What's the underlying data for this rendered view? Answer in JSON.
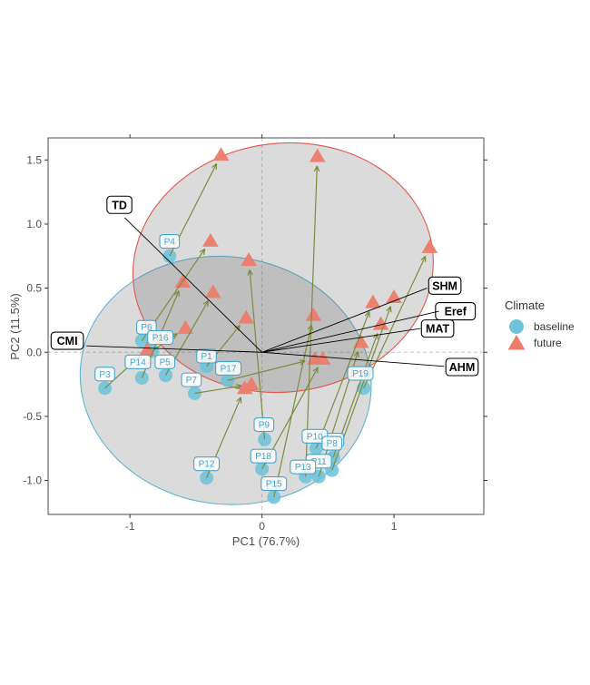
{
  "chart_data": {
    "type": "scatter",
    "title": "",
    "xlabel": "PC1 (76.7%)",
    "ylabel": "PC2 (11.5%)",
    "xlim": [
      -1.62,
      1.68
    ],
    "ylim": [
      -1.265,
      1.672
    ],
    "grid": "off",
    "reference_lines": {
      "vline_x": 0,
      "hline_y": 0
    },
    "x_ticks": [
      {
        "value": -1,
        "label": "-1"
      },
      {
        "value": 0,
        "label": "0"
      },
      {
        "value": 1,
        "label": "1"
      }
    ],
    "y_ticks": [
      {
        "value": -1.0,
        "label": "-1.0"
      },
      {
        "value": -0.5,
        "label": "-0.5"
      },
      {
        "value": 0.0,
        "label": "0.0"
      },
      {
        "value": 0.5,
        "label": "0.5"
      },
      {
        "value": 1.0,
        "label": "1.0"
      },
      {
        "value": 1.5,
        "label": "1.5"
      }
    ],
    "legend": {
      "title": "Climate",
      "position": "right",
      "entries": [
        {
          "label": "baseline",
          "marker": "circle"
        },
        {
          "label": "future",
          "marker": "triangle"
        }
      ]
    },
    "colors": {
      "baseline": "#6EC3DA",
      "future": "#EC7C6B",
      "arrow": "#7D8B3E",
      "baseline_ellipse_stroke": "#5FB4D1",
      "future_ellipse_stroke": "#E0584A",
      "ellipse_fill": "rgba(106,106,106,0.24)",
      "site_label": "#45A5CC",
      "loading_line": "#000000",
      "dashed_line": "#C4C4C4",
      "axis_text": "#4d4d4d",
      "panel_border": "#4d4d4d"
    },
    "series": [
      {
        "name": "baseline",
        "marker": "circle"
      },
      {
        "name": "future",
        "marker": "triangle"
      }
    ],
    "sites": [
      {
        "id": "P1",
        "baseline": [
          -0.42,
          -0.11
        ],
        "future": [
          -0.12,
          0.27
        ],
        "label_pos": [
          -0.42,
          -0.03
        ]
      },
      {
        "id": "P2",
        "baseline": [
          0.53,
          -0.92
        ],
        "future": [
          1.0,
          0.43
        ],
        "label_pos": [
          0.545,
          -0.685
        ]
      },
      {
        "id": "P3",
        "baseline": [
          -1.19,
          -0.28
        ],
        "future": [
          -0.87,
          0.02
        ],
        "label_pos": [
          -1.19,
          -0.17
        ]
      },
      {
        "id": "P4",
        "baseline": [
          -0.7,
          0.75
        ],
        "future": [
          -0.31,
          1.54
        ],
        "label_pos": [
          -0.7,
          0.865
        ]
      },
      {
        "id": "P5",
        "baseline": [
          -0.73,
          -0.18
        ],
        "future": [
          -0.37,
          0.47
        ],
        "label_pos": [
          -0.735,
          -0.075
        ]
      },
      {
        "id": "P6",
        "baseline": [
          -0.91,
          0.09
        ],
        "future": [
          -0.39,
          0.87
        ],
        "label_pos": [
          -0.875,
          0.195
        ]
      },
      {
        "id": "P7",
        "baseline": [
          -0.51,
          -0.32
        ],
        "future": [
          -0.08,
          -0.25
        ],
        "label_pos": [
          -0.535,
          -0.215
        ]
      },
      {
        "id": "P8",
        "baseline": [
          0.54,
          -0.82
        ],
        "future": [
          0.9,
          0.22
        ],
        "label_pos": [
          0.53,
          -0.71
        ]
      },
      {
        "id": "P9",
        "baseline": [
          0.02,
          -0.68
        ],
        "future": [
          -0.1,
          0.72
        ],
        "label_pos": [
          0.015,
          -0.565
        ]
      },
      {
        "id": "P10",
        "baseline": [
          0.41,
          -0.75
        ],
        "future": [
          0.84,
          0.39
        ],
        "label_pos": [
          0.4,
          -0.655
        ]
      },
      {
        "id": "P11",
        "baseline": [
          0.43,
          -0.97
        ],
        "future": [
          0.75,
          0.08
        ],
        "label_pos": [
          0.43,
          -0.85
        ]
      },
      {
        "id": "P12",
        "baseline": [
          -0.42,
          -0.98
        ],
        "future": [
          -0.13,
          -0.28
        ],
        "label_pos": [
          -0.42,
          -0.87
        ]
      },
      {
        "id": "P13",
        "baseline": [
          0.33,
          -0.97
        ],
        "future": [
          0.42,
          1.53
        ],
        "label_pos": [
          0.31,
          -0.895
        ]
      },
      {
        "id": "P14",
        "baseline": [
          -0.91,
          -0.2
        ],
        "future": [
          -0.6,
          0.55
        ],
        "label_pos": [
          -0.94,
          -0.075
        ]
      },
      {
        "id": "P15",
        "baseline": [
          0.09,
          -1.13
        ],
        "future": [
          0.39,
          0.29
        ],
        "label_pos": [
          0.09,
          -1.025
        ]
      },
      {
        "id": "P16",
        "baseline": [
          -0.83,
          0.01
        ],
        "future": [
          -0.58,
          0.19
        ],
        "label_pos": [
          -0.77,
          0.115
        ]
      },
      {
        "id": "P17",
        "baseline": [
          -0.26,
          -0.22
        ],
        "future": [
          0.4,
          -0.05
        ],
        "label_pos": [
          -0.255,
          -0.125
        ]
      },
      {
        "id": "P18",
        "baseline": [
          0.0,
          -0.91
        ],
        "future": [
          0.46,
          -0.05
        ],
        "label_pos": [
          0.01,
          -0.81
        ]
      },
      {
        "id": "P19",
        "baseline": [
          0.77,
          -0.28
        ],
        "future": [
          1.27,
          0.82
        ],
        "label_pos": [
          0.745,
          -0.165
        ]
      }
    ],
    "label_draw_order": [
      "P2",
      "P11",
      "P6",
      "P4",
      "P3",
      "P14",
      "P5",
      "P16",
      "P1",
      "P17",
      "P7",
      "P9",
      "P12",
      "P18",
      "P15",
      "P13",
      "P10",
      "P8",
      "P19"
    ],
    "loadings": [
      {
        "label": "TD",
        "end": [
          -1.04,
          1.05
        ],
        "label_pos": [
          -1.08,
          1.15
        ]
      },
      {
        "label": "CMI",
        "end": [
          -1.33,
          0.05
        ],
        "label_pos": [
          -1.475,
          0.09
        ]
      },
      {
        "label": "SHM",
        "end": [
          1.25,
          0.5
        ],
        "label_pos": [
          1.385,
          0.52
        ]
      },
      {
        "label": "Eref",
        "end": [
          1.34,
          0.32
        ],
        "label_pos": [
          1.465,
          0.32
        ]
      },
      {
        "label": "MAT",
        "end": [
          1.2,
          0.185
        ],
        "label_pos": [
          1.33,
          0.185
        ]
      },
      {
        "label": "AHM",
        "end": [
          1.38,
          -0.11
        ],
        "label_pos": [
          1.515,
          -0.115
        ]
      }
    ],
    "ellipses": [
      {
        "group": "baseline",
        "cx": -0.275,
        "cy": -0.22,
        "rx": 1.105,
        "ry": 0.965,
        "rotate_deg": 8
      },
      {
        "group": "future",
        "cx": 0.16,
        "cy": 0.66,
        "rx": 1.14,
        "ry": 0.97,
        "rotate_deg": -7
      }
    ]
  }
}
